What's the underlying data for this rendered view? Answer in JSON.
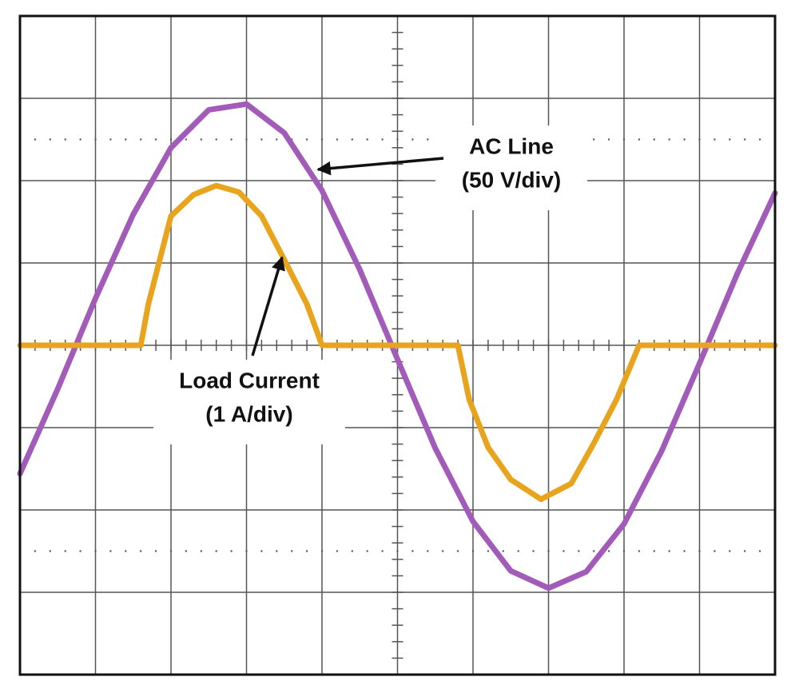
{
  "chart_data": {
    "type": "line",
    "xlim": [
      0,
      10
    ],
    "ylim": [
      -4,
      4
    ],
    "grid": true,
    "series": [
      {
        "name": "AC Line",
        "scale": "(50 V/div)",
        "color": "#a25bb8",
        "x": [
          0,
          0.5,
          1,
          1.5,
          2,
          2.5,
          3,
          3.5,
          4,
          4.5,
          5,
          5.5,
          6,
          6.5,
          7,
          7.5,
          8,
          8.5,
          9,
          9.5,
          10
        ],
        "values": [
          -1.56,
          -0.53,
          0.57,
          1.59,
          2.4,
          2.86,
          2.93,
          2.58,
          1.88,
          0.92,
          -0.17,
          -1.25,
          -2.14,
          -2.74,
          -2.95,
          -2.75,
          -2.17,
          -1.28,
          -0.22,
          0.87,
          1.85
        ]
      },
      {
        "name": "Load Current",
        "scale": "(1 A/div)",
        "color": "#e8a41c",
        "x": [
          0,
          1.6,
          1.7,
          2.0,
          2.3,
          2.6,
          2.9,
          3.2,
          3.5,
          3.8,
          4.0,
          5.8,
          5.95,
          6.2,
          6.5,
          6.9,
          7.3,
          7.6,
          7.9,
          8.2,
          10
        ],
        "values": [
          0,
          0,
          0.5,
          1.57,
          1.83,
          1.94,
          1.86,
          1.57,
          1.04,
          0.5,
          0,
          0,
          -0.66,
          -1.24,
          -1.63,
          -1.87,
          -1.68,
          -1.19,
          -0.66,
          0,
          0
        ]
      }
    ]
  }
}
